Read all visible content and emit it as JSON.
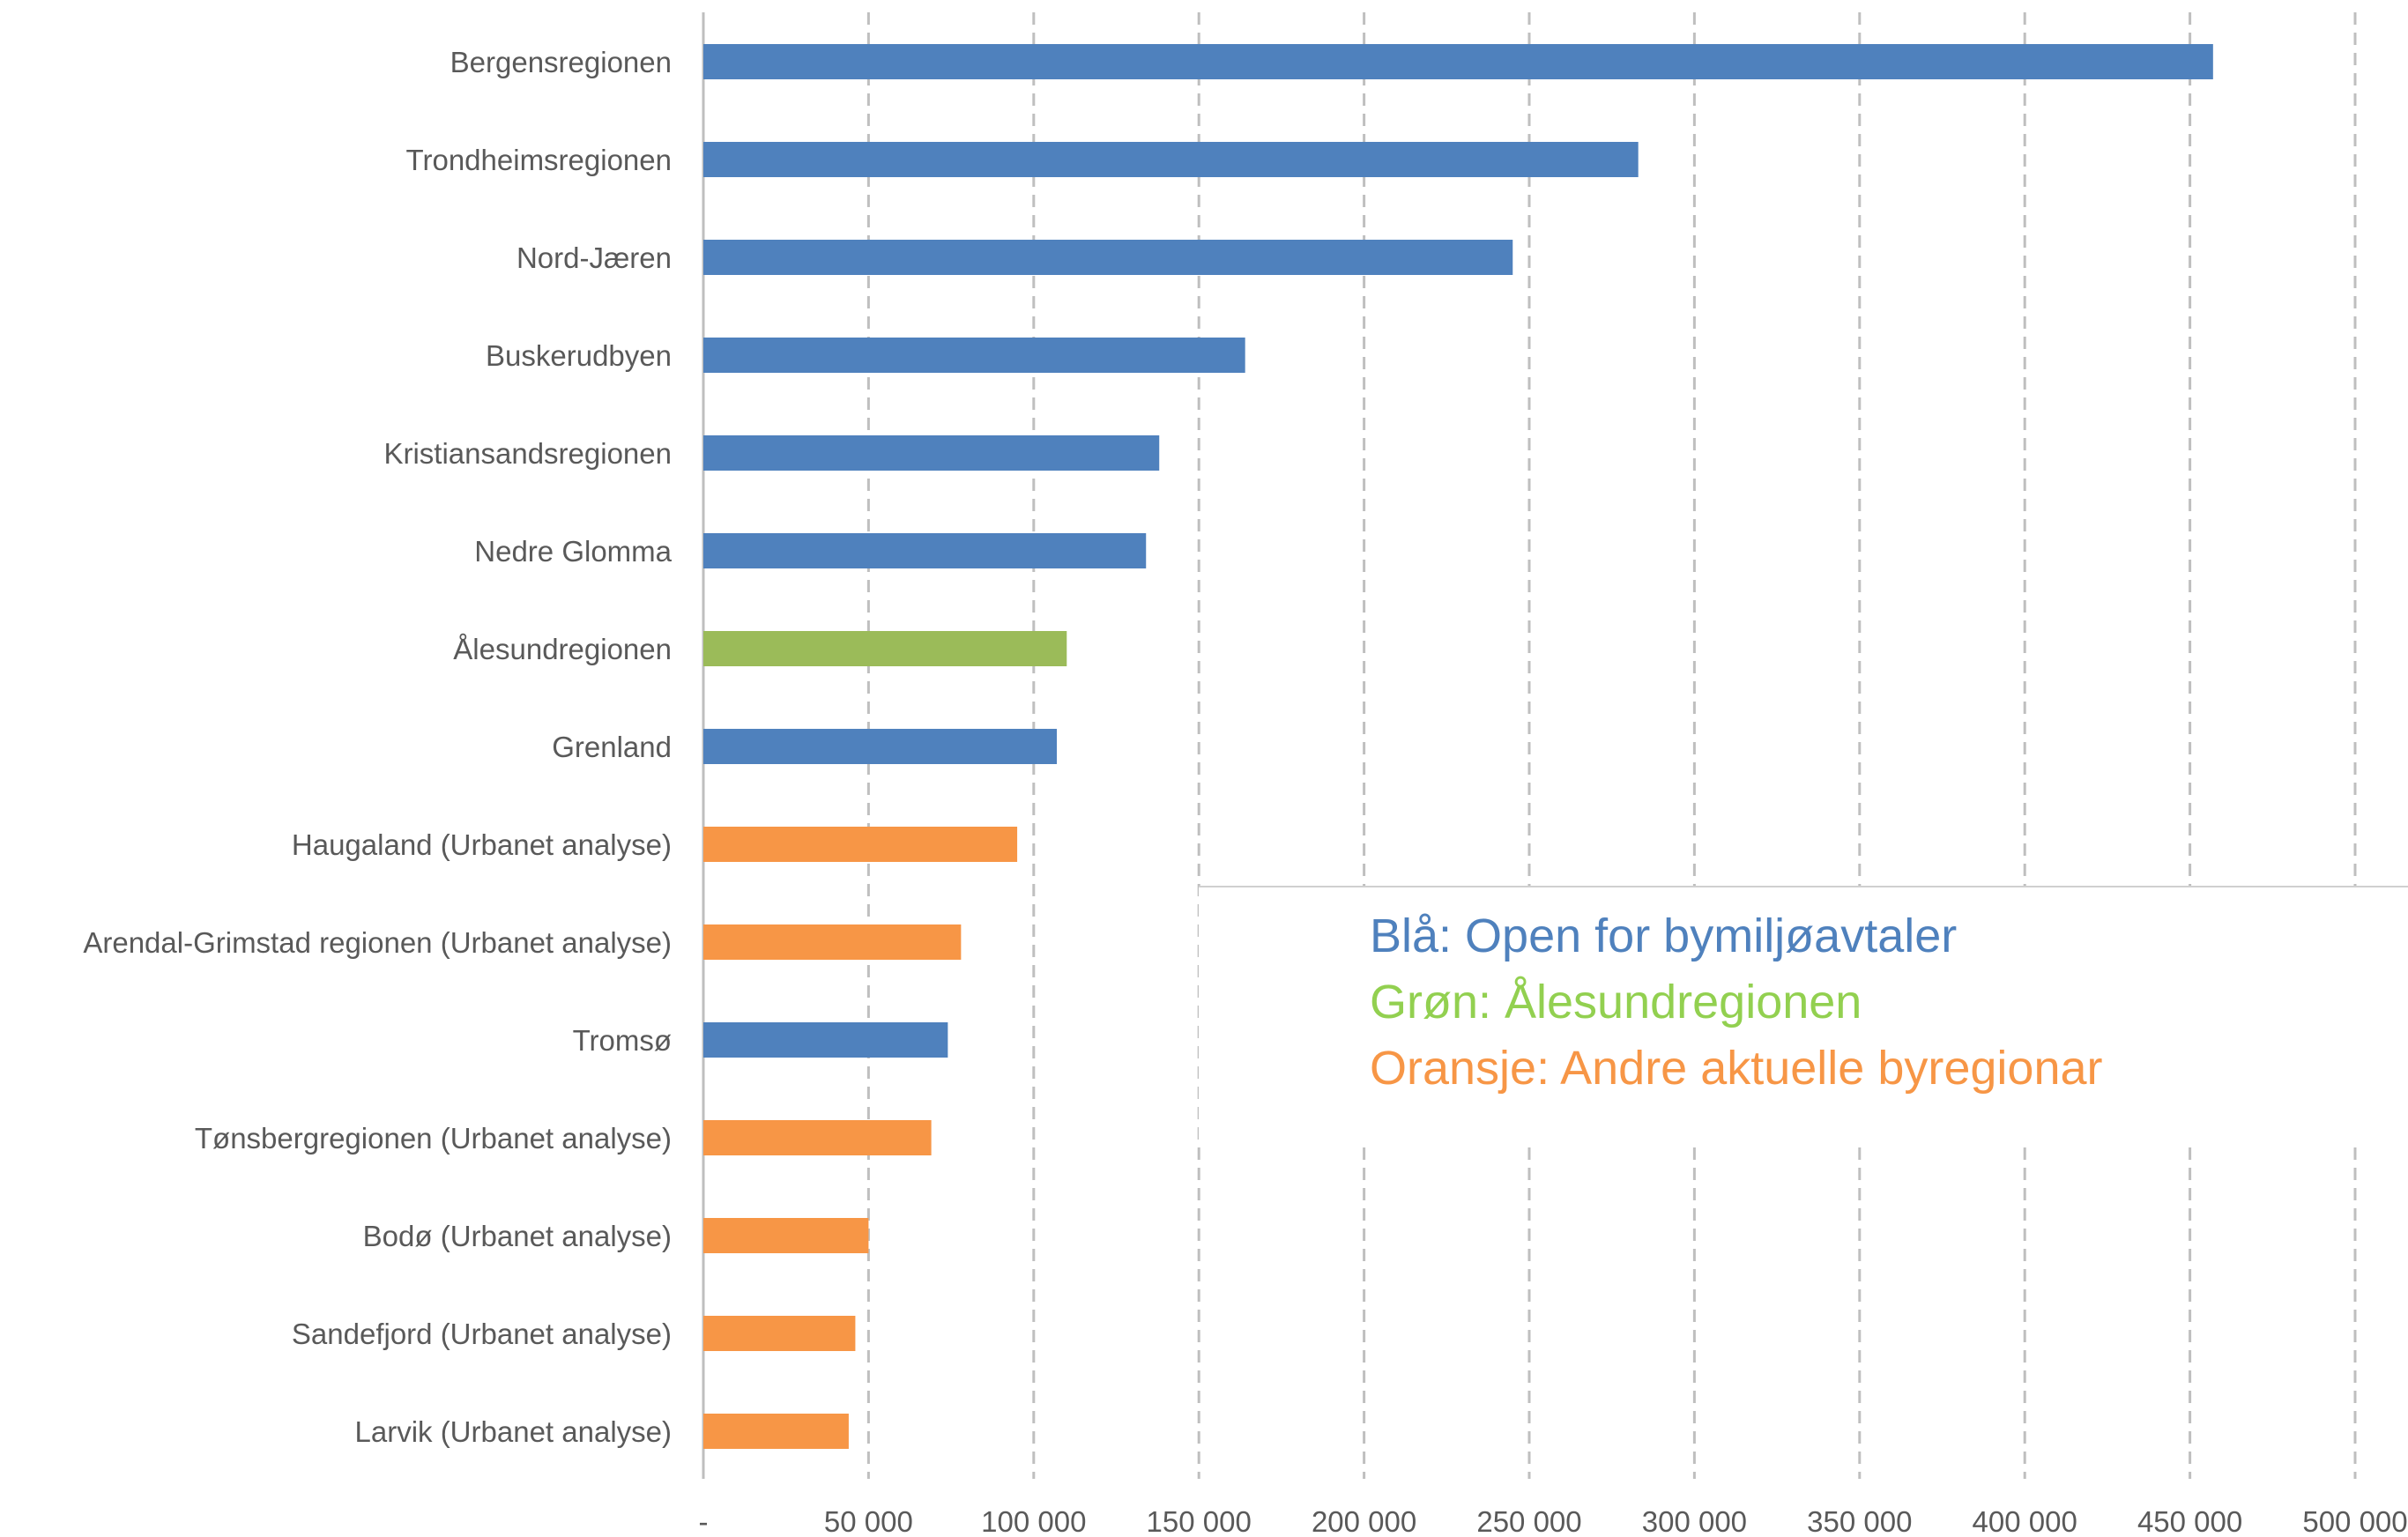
{
  "chart_data": {
    "type": "bar",
    "orientation": "horizontal",
    "categories": [
      "Bergensregionen",
      "Trondheimsregionen",
      "Nord-Jæren",
      "Buskerudbyen",
      "Kristiansandsregionen",
      "Nedre Glomma",
      "Ålesundregionen",
      "Grenland",
      "Haugaland (Urbanet analyse)",
      "Arendal-Grimstad regionen (Urbanet analyse)",
      "Tromsø",
      "Tønsbergregionen (Urbanet analyse)",
      "Bodø (Urbanet analyse)",
      "Sandefjord (Urbanet analyse)",
      "Larvik (Urbanet analyse)"
    ],
    "values": [
      457000,
      283000,
      245000,
      164000,
      138000,
      134000,
      110000,
      107000,
      95000,
      78000,
      74000,
      69000,
      50000,
      46000,
      44000
    ],
    "groups": [
      "blue",
      "blue",
      "blue",
      "blue",
      "blue",
      "blue",
      "green",
      "blue",
      "orange",
      "orange",
      "blue",
      "orange",
      "orange",
      "orange",
      "orange"
    ],
    "colors": {
      "blue": "#4f81bd",
      "green": "#9bbb59",
      "orange": "#f79646"
    },
    "xlim": [
      0,
      500000
    ],
    "x_ticks": [
      0,
      50000,
      100000,
      150000,
      200000,
      250000,
      300000,
      350000,
      400000,
      450000,
      500000
    ],
    "x_tick_labels": [
      "-",
      "50 000",
      "100 000",
      "150 000",
      "200 000",
      "250 000",
      "300 000",
      "350 000",
      "400 000",
      "450 000",
      "500 000"
    ],
    "grid": "vertical dashed",
    "title": "",
    "xlabel": "",
    "ylabel": ""
  },
  "annotation": {
    "lines": [
      {
        "text": "Blå: Open for bymiljøavtaler",
        "color": "#4f81bd"
      },
      {
        "text": "Grøn: Ålesundregionen",
        "color": "#92d050"
      },
      {
        "text": "Oransje: Andre aktuelle byregionar",
        "color": "#f79646"
      }
    ]
  }
}
